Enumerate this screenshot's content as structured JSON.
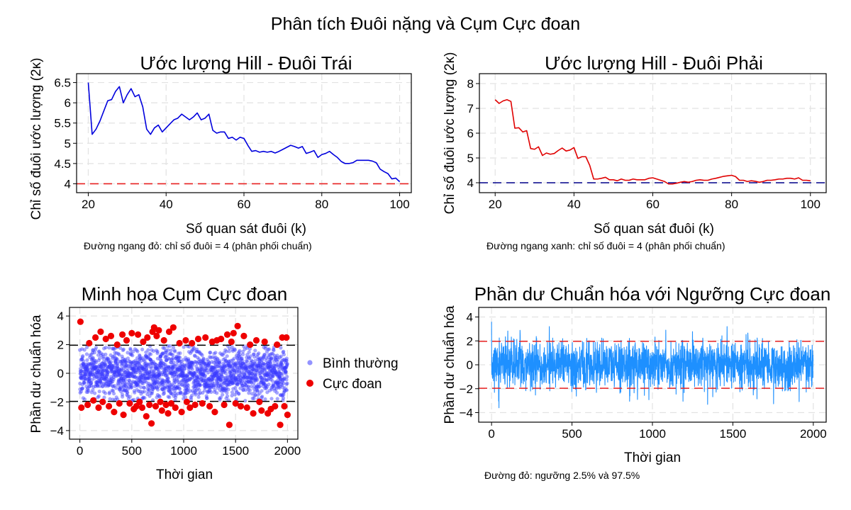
{
  "figure": {
    "title": "Phân tích Đuôi nặng và Cụm Cực đoan"
  },
  "colors": {
    "left_tail": "#0000dd",
    "right_tail": "#e00000",
    "red_ref": "#e82020",
    "blue_ref": "#00008b",
    "normal_points": "#3a3aff",
    "extreme_points": "#ee0000",
    "residual_line": "#1e90ff",
    "threshold_black": "#000000",
    "threshold_red": "#e82020"
  },
  "chart_data": [
    {
      "id": "hill-left",
      "type": "line",
      "title": "Ước lượng Hill - Đuôi Trái",
      "xlabel": "Số quan sát đuôi (k)",
      "ylabel": "Chỉ số đuôi ước lượng (2κ)",
      "note": "Đường ngang đỏ: chỉ số đuôi = 4 (phân phối chuẩn)",
      "xlim": [
        17,
        103
      ],
      "ylim": [
        3.78,
        6.72
      ],
      "xticks": [
        20,
        40,
        60,
        80,
        100
      ],
      "yticks": [
        4,
        4.5,
        5,
        5.5,
        6,
        6.5
      ],
      "ytick_labels": [
        "4",
        "4.5",
        "5",
        "5.5",
        "6",
        "6.5"
      ],
      "grid": true,
      "reference_line": {
        "y": 4,
        "style": "dashed",
        "color": "red"
      },
      "series": [
        {
          "x": [
            20,
            21,
            22,
            23,
            24,
            25,
            26,
            27,
            28,
            29,
            30,
            31,
            32,
            33,
            34,
            35,
            36,
            37,
            38,
            39,
            40,
            41,
            42,
            43,
            44,
            45,
            46,
            47,
            48,
            49,
            50,
            51,
            52,
            53,
            54,
            55,
            56,
            57,
            58,
            59,
            60,
            61,
            62,
            63,
            64,
            65,
            66,
            67,
            68,
            69,
            70,
            71,
            72,
            73,
            74,
            75,
            76,
            77,
            78,
            79,
            80,
            81,
            82,
            83,
            84,
            85,
            86,
            87,
            88,
            89,
            90,
            91,
            92,
            93,
            94,
            95,
            96,
            97,
            98,
            99,
            100
          ],
          "y": [
            6.5,
            5.22,
            5.35,
            5.55,
            5.8,
            6.05,
            6.08,
            6.28,
            6.4,
            6.0,
            6.2,
            6.35,
            6.15,
            6.2,
            5.9,
            5.35,
            5.22,
            5.38,
            5.45,
            5.28,
            5.38,
            5.48,
            5.58,
            5.62,
            5.72,
            5.65,
            5.58,
            5.65,
            5.75,
            5.58,
            5.62,
            5.72,
            5.32,
            5.25,
            5.28,
            5.28,
            5.12,
            5.15,
            5.08,
            5.15,
            5.12,
            4.95,
            4.8,
            4.82,
            4.78,
            4.8,
            4.78,
            4.8,
            4.76,
            4.8,
            4.85,
            4.9,
            4.95,
            4.92,
            4.88,
            4.92,
            4.75,
            4.78,
            4.82,
            4.65,
            4.72,
            4.75,
            4.8,
            4.72,
            4.65,
            4.55,
            4.5,
            4.5,
            4.52,
            4.58,
            4.58,
            4.58,
            4.58,
            4.56,
            4.52,
            4.36,
            4.3,
            4.25,
            4.12,
            4.14,
            4.05
          ]
        }
      ]
    },
    {
      "id": "hill-right",
      "type": "line",
      "title": "Ước lượng Hill - Đuôi Phải",
      "xlabel": "Số quan sát đuôi (k)",
      "ylabel": "Chỉ số đuôi ước lượng (2κ)",
      "note": "Đường ngang xanh: chỉ số đuôi = 4 (phân phối chuẩn)",
      "xlim": [
        16,
        104
      ],
      "ylim": [
        3.6,
        8.4
      ],
      "xticks": [
        20,
        40,
        60,
        80,
        100
      ],
      "yticks": [
        4,
        5,
        6,
        7,
        8
      ],
      "ytick_labels": [
        "4",
        "5",
        "6",
        "7",
        "8"
      ],
      "grid": true,
      "reference_line": {
        "y": 4,
        "style": "dashed",
        "color": "blue"
      },
      "series": [
        {
          "x": [
            20,
            21,
            22,
            23,
            24,
            25,
            26,
            27,
            28,
            29,
            30,
            31,
            32,
            33,
            34,
            35,
            36,
            37,
            38,
            39,
            40,
            41,
            42,
            43,
            44,
            45,
            46,
            47,
            48,
            49,
            50,
            51,
            52,
            53,
            54,
            55,
            56,
            57,
            58,
            59,
            60,
            61,
            62,
            63,
            64,
            65,
            66,
            67,
            68,
            69,
            70,
            71,
            72,
            73,
            74,
            75,
            76,
            77,
            78,
            79,
            80,
            81,
            82,
            83,
            84,
            85,
            86,
            87,
            88,
            89,
            90,
            91,
            92,
            93,
            94,
            95,
            96,
            97,
            98,
            99,
            100
          ],
          "y": [
            7.35,
            7.2,
            7.3,
            7.35,
            7.28,
            6.2,
            6.22,
            6.05,
            6.1,
            5.38,
            5.35,
            5.45,
            5.1,
            5.2,
            5.15,
            5.18,
            5.3,
            5.4,
            5.28,
            5.32,
            5.42,
            4.98,
            5.05,
            5.05,
            4.7,
            4.15,
            4.15,
            4.18,
            4.22,
            4.12,
            4.12,
            4.08,
            4.15,
            4.1,
            4.1,
            4.15,
            4.12,
            4.12,
            4.12,
            4.18,
            4.2,
            4.15,
            4.1,
            4.05,
            3.95,
            3.95,
            3.98,
            4.02,
            4.05,
            4.02,
            4.05,
            4.1,
            4.12,
            4.1,
            4.1,
            4.15,
            4.18,
            4.22,
            4.26,
            4.28,
            4.3,
            4.25,
            4.1,
            4.1,
            4.05,
            4.08,
            4.06,
            4.02,
            4.05,
            4.1,
            4.1,
            4.12,
            4.15,
            4.15,
            4.18,
            4.18,
            4.15,
            4.2,
            4.1,
            4.1,
            4.08
          ]
        }
      ]
    },
    {
      "id": "extreme-clusters",
      "type": "scatter",
      "title": "Minh họa Cụm Cực đoan",
      "xlabel": "Thời gian",
      "ylabel": "Phần dư chuẩn hóa",
      "xlim": [
        -100,
        2100
      ],
      "ylim": [
        -4.6,
        4.6
      ],
      "xticks": [
        0,
        500,
        1000,
        1500,
        2000
      ],
      "yticks": [
        -4,
        -2,
        0,
        2,
        4
      ],
      "ytick_labels": [
        "−4",
        "−2",
        "0",
        "2",
        "4"
      ],
      "grid": true,
      "threshold_lines": [
        1.96,
        -1.96
      ],
      "legend": {
        "placement": "right",
        "entries": [
          "Bình thường",
          "Cực đoan"
        ]
      },
      "n_points": 2000,
      "seed": 7,
      "extremes": [
        [
          5,
          3.6
        ],
        [
          15,
          -2.4
        ],
        [
          75,
          -2.2
        ],
        [
          90,
          2.1
        ],
        [
          130,
          -1.9
        ],
        [
          150,
          2.5
        ],
        [
          180,
          -2.4
        ],
        [
          200,
          2.9
        ],
        [
          220,
          -2.0
        ],
        [
          250,
          2.4
        ],
        [
          280,
          -2.3
        ],
        [
          300,
          2.6
        ],
        [
          330,
          -2.7
        ],
        [
          360,
          2.0
        ],
        [
          380,
          -2.1
        ],
        [
          410,
          2.7
        ],
        [
          420,
          -2.9
        ],
        [
          450,
          2.3
        ],
        [
          480,
          -2.1
        ],
        [
          500,
          2.8
        ],
        [
          520,
          -2.5
        ],
        [
          545,
          -2.3
        ],
        [
          560,
          2.7
        ],
        [
          575,
          -2.0
        ],
        [
          600,
          -2.4
        ],
        [
          610,
          2.2
        ],
        [
          640,
          -3.0
        ],
        [
          650,
          2.5
        ],
        [
          670,
          -2.2
        ],
        [
          690,
          -3.5
        ],
        [
          700,
          2.9
        ],
        [
          715,
          3.2
        ],
        [
          730,
          -2.3
        ],
        [
          740,
          2.6
        ],
        [
          760,
          3.0
        ],
        [
          775,
          -2.0
        ],
        [
          790,
          -2.6
        ],
        [
          810,
          2.3
        ],
        [
          830,
          -2.2
        ],
        [
          850,
          -2.8
        ],
        [
          860,
          2.9
        ],
        [
          880,
          -2.1
        ],
        [
          900,
          3.2
        ],
        [
          920,
          -2.4
        ],
        [
          960,
          2.1
        ],
        [
          980,
          -2.7
        ],
        [
          1020,
          2.3
        ],
        [
          1030,
          -2.0
        ],
        [
          1060,
          -2.4
        ],
        [
          1080,
          2.1
        ],
        [
          1110,
          -2.2
        ],
        [
          1140,
          2.4
        ],
        [
          1180,
          -2.1
        ],
        [
          1210,
          2.5
        ],
        [
          1250,
          -2.3
        ],
        [
          1275,
          2.2
        ],
        [
          1300,
          -2.7
        ],
        [
          1320,
          2.3
        ],
        [
          1360,
          2.4
        ],
        [
          1390,
          -2.2
        ],
        [
          1420,
          2.7
        ],
        [
          1440,
          -3.6
        ],
        [
          1460,
          2.2
        ],
        [
          1480,
          2.8
        ],
        [
          1500,
          -2.1
        ],
        [
          1520,
          3.3
        ],
        [
          1550,
          -2.3
        ],
        [
          1580,
          2.6
        ],
        [
          1610,
          -2.4
        ],
        [
          1640,
          2.0
        ],
        [
          1670,
          -2.8
        ],
        [
          1700,
          2.3
        ],
        [
          1730,
          -2.0
        ],
        [
          1750,
          -2.6
        ],
        [
          1780,
          2.2
        ],
        [
          1810,
          -2.8
        ],
        [
          1840,
          -2.5
        ],
        [
          1880,
          -2.3
        ],
        [
          1900,
          2.0
        ],
        [
          1930,
          -3.6
        ],
        [
          1950,
          2.5
        ],
        [
          1970,
          -2.3
        ],
        [
          1990,
          2.5
        ],
        [
          2000,
          -2.9
        ]
      ]
    },
    {
      "id": "standardized-residuals",
      "type": "line",
      "title": "Phần dư Chuẩn hóa với Ngưỡng Cực đoan",
      "xlabel": "Thời gian",
      "ylabel": "Phần dư chuẩn hóa",
      "note": "Đường đỏ: ngưỡng 2.5% và 97.5%",
      "xlim": [
        -80,
        2080
      ],
      "ylim": [
        -4.8,
        4.8
      ],
      "xticks": [
        0,
        500,
        1000,
        1500,
        2000
      ],
      "yticks": [
        -4,
        -2,
        0,
        2,
        4
      ],
      "ytick_labels": [
        "−4",
        "−2",
        "0",
        "2",
        "4"
      ],
      "grid": true,
      "threshold_lines": [
        1.96,
        -1.96
      ],
      "n_points": 2000,
      "seed": 11
    }
  ]
}
